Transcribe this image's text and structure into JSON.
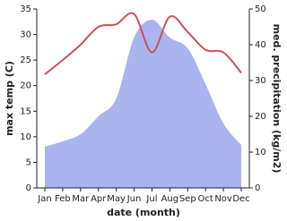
{
  "chart_data": {
    "type": "line-area",
    "categories": [
      "Jan",
      "Feb",
      "Mar",
      "Apr",
      "May",
      "Jun",
      "Jul",
      "Aug",
      "Sep",
      "Oct",
      "Nov",
      "Dec"
    ],
    "x_label": "date (month)",
    "y_label": "max temp (C)",
    "y2_label": "med. precipitation (kg/m2)",
    "series": [
      {
        "name": "max temp",
        "color": "#c8545a",
        "values": [
          22.2,
          25,
          28,
          31.5,
          32,
          34,
          26.5,
          33.5,
          30.5,
          27,
          26.5,
          22.5
        ]
      },
      {
        "name": "med. precipitation",
        "color": "#aab5ef",
        "axis": "y2",
        "values": [
          11.5,
          13,
          15,
          20,
          25,
          42,
          47,
          42,
          39,
          29,
          18,
          12
        ]
      }
    ],
    "ylim": [
      0,
      35
    ],
    "yticks": [
      0,
      5,
      10,
      15,
      20,
      25,
      30,
      35
    ],
    "y2lim": [
      0,
      50
    ],
    "y2ticks": [
      0,
      10,
      20,
      30,
      40,
      50
    ]
  }
}
